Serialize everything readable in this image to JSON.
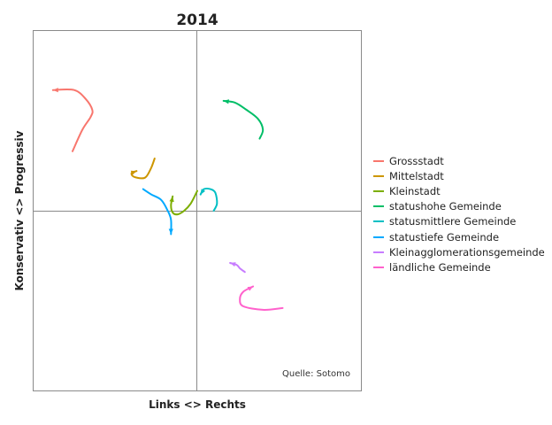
{
  "chart_data": {
    "type": "line",
    "title": "2014",
    "xlabel": "Links <> Rechts",
    "ylabel": "Konservativ <> Progressiv",
    "source": "Quelle: Sotomo",
    "xlim": [
      -1,
      1
    ],
    "ylim": [
      -1,
      1
    ],
    "grid": false,
    "reference_lines": {
      "x": 0,
      "y": 0
    },
    "legend_position": "right",
    "series": [
      {
        "name": "Grossstadt",
        "color": "#f8766d",
        "x": [
          -0.76,
          -0.7,
          -0.65,
          -0.64,
          -0.68,
          -0.75,
          -0.88
        ],
        "y": [
          0.33,
          0.45,
          0.52,
          0.56,
          0.62,
          0.67,
          0.67
        ]
      },
      {
        "name": "Mittelstadt",
        "color": "#cd9600",
        "x": [
          -0.26,
          -0.28,
          -0.31,
          -0.34,
          -0.39,
          -0.4,
          -0.37
        ],
        "y": [
          0.29,
          0.24,
          0.19,
          0.18,
          0.19,
          0.21,
          0.22
        ]
      },
      {
        "name": "Kleinstadt",
        "color": "#7cae00",
        "x": [
          0.0,
          -0.04,
          -0.08,
          -0.12,
          -0.15,
          -0.16,
          -0.15
        ],
        "y": [
          0.11,
          0.04,
          0.0,
          -0.02,
          -0.01,
          0.03,
          0.08
        ]
      },
      {
        "name": "statushohe Gemeinde",
        "color": "#00be67",
        "x": [
          0.38,
          0.4,
          0.37,
          0.3,
          0.23,
          0.16
        ],
        "y": [
          0.4,
          0.45,
          0.51,
          0.56,
          0.6,
          0.61
        ]
      },
      {
        "name": "statusmittlere Gemeinde",
        "color": "#00bfc4",
        "x": [
          0.1,
          0.12,
          0.11,
          0.08,
          0.04,
          0.02
        ],
        "y": [
          0.0,
          0.04,
          0.1,
          0.12,
          0.12,
          0.09
        ]
      },
      {
        "name": "statustiefe Gemeinde",
        "color": "#00a9ff",
        "x": [
          -0.33,
          -0.28,
          -0.22,
          -0.18,
          -0.16,
          -0.16
        ],
        "y": [
          0.12,
          0.09,
          0.06,
          0.0,
          -0.05,
          -0.13
        ]
      },
      {
        "name": "Kleinagglomerationsgemeinde",
        "color": "#c77cff",
        "x": [
          0.29,
          0.26,
          0.24,
          0.2
        ],
        "y": [
          -0.34,
          -0.32,
          -0.3,
          -0.29
        ]
      },
      {
        "name": "ländliche Gemeinde",
        "color": "#ff61cc",
        "x": [
          0.52,
          0.4,
          0.28,
          0.26,
          0.28,
          0.34
        ],
        "y": [
          -0.54,
          -0.55,
          -0.53,
          -0.49,
          -0.45,
          -0.42
        ]
      }
    ]
  }
}
